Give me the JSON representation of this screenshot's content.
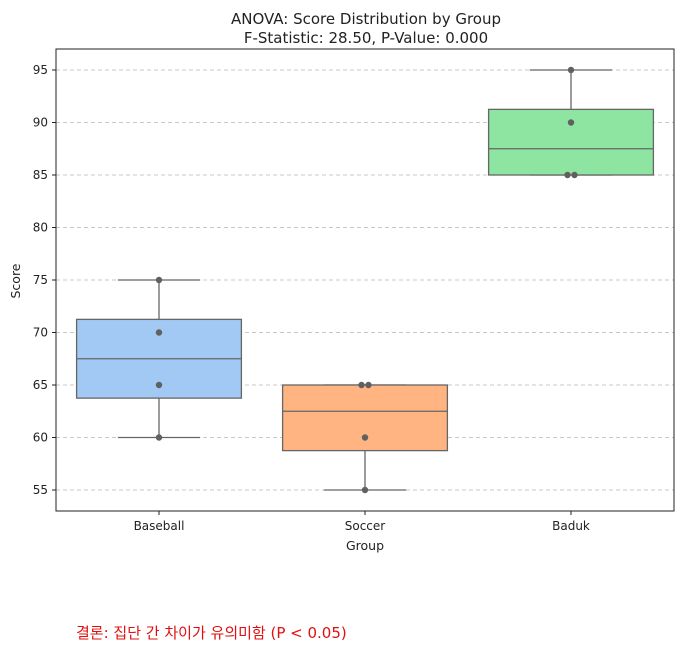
{
  "chart_data": {
    "type": "box",
    "title": "ANOVA: Score Distribution by Group",
    "subtitle": "F-Statistic: 28.50, P-Value: 0.000",
    "xlabel": "Group",
    "ylabel": "Score",
    "ylim": [
      53,
      97
    ],
    "yticks": [
      55,
      60,
      65,
      70,
      75,
      80,
      85,
      90,
      95
    ],
    "grid": "horizontal dashed",
    "groups": [
      {
        "label": "Baseball",
        "color": "#a1c9f4",
        "q1": 63.75,
        "median": 67.5,
        "q3": 71.25,
        "whisker_low": 60,
        "whisker_high": 75,
        "points": [
          60,
          65,
          70,
          75
        ]
      },
      {
        "label": "Soccer",
        "color": "#ffb482",
        "q1": 58.75,
        "median": 62.5,
        "q3": 65,
        "whisker_low": 55,
        "whisker_high": 65,
        "points": [
          55,
          60,
          65,
          65
        ]
      },
      {
        "label": "Baduk",
        "color": "#8de5a1",
        "q1": 85,
        "median": 87.5,
        "q3": 91.25,
        "whisker_low": 85,
        "whisker_high": 95,
        "points": [
          85,
          85,
          90,
          95
        ]
      }
    ]
  },
  "conclusion": "결론: 집단 간 차이가 유의미함 (P < 0.05)"
}
